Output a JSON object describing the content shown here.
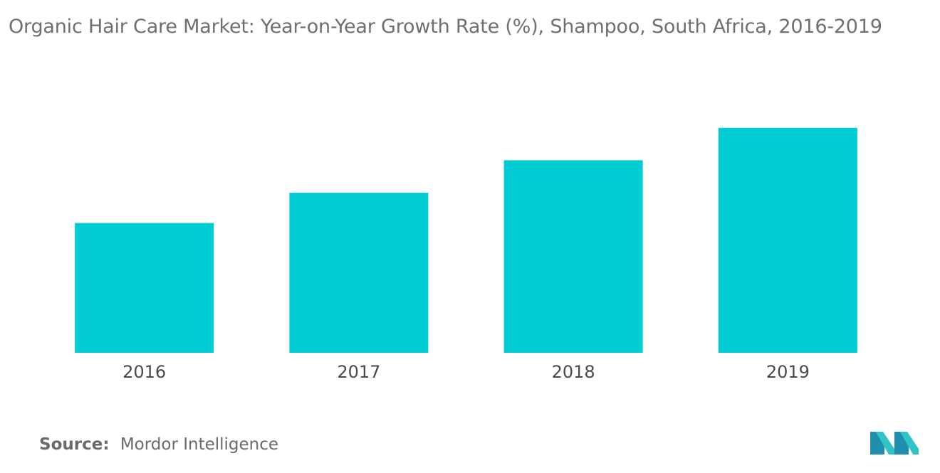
{
  "header": {
    "title": "Organic Hair Care Market: Year-on-Year Growth Rate (%), Shampoo, South Africa, 2016-2019"
  },
  "chart_data": {
    "type": "bar",
    "categories": [
      "2016",
      "2017",
      "2018",
      "2019"
    ],
    "values": [
      3.0,
      3.7,
      4.45,
      5.2
    ],
    "title": "Organic Hair Care Market: Year-on-Year Growth Rate (%), Shampoo, South Africa, 2016-2019",
    "xlabel": "",
    "ylabel": "",
    "ylim": [
      0,
      6.1
    ],
    "grid": false,
    "bar_color": "#00cdd3"
  },
  "footer": {
    "source_label": "Source:",
    "source_value": "Mordor Intelligence"
  },
  "logo": {
    "icon": "mordor-intelligence-logo-icon",
    "colors": [
      "#1f8fb0",
      "#2fc4c8"
    ]
  }
}
